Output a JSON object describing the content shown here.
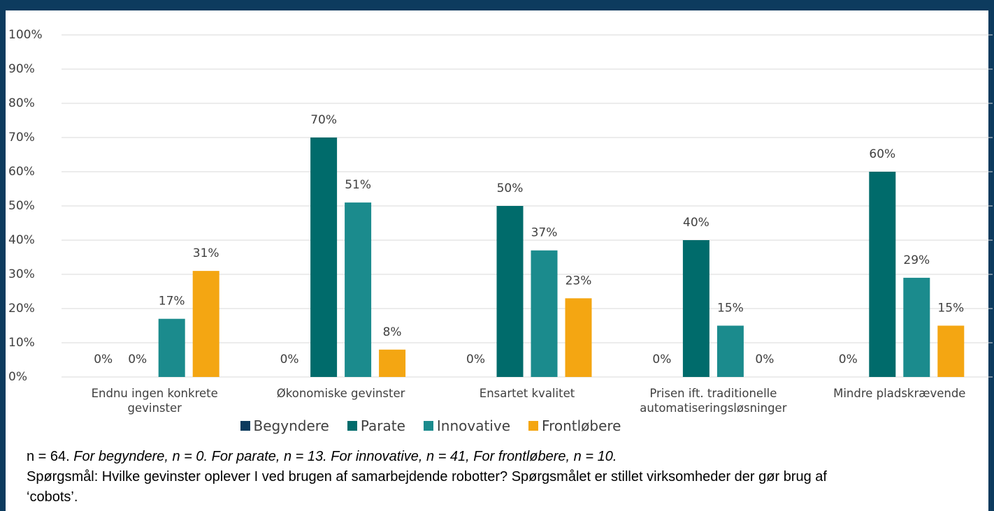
{
  "chart_data": {
    "type": "bar",
    "categories": [
      "Endnu ingen konkrete gevinster",
      "Økonomiske gevinster",
      "Ensartet kvalitet",
      "Prisen ift. traditionelle automatiseringsløsninger",
      "Mindre pladskrævende"
    ],
    "series": [
      {
        "name": "Begyndere",
        "color": "#0d3b5e",
        "values": [
          0,
          0,
          0,
          0,
          0
        ],
        "value_labels": [
          "0%",
          "0%",
          "0%",
          "0%",
          "0%"
        ]
      },
      {
        "name": "Parate",
        "color": "#006b6b",
        "values": [
          0,
          70,
          50,
          40,
          60
        ],
        "value_labels": [
          "0%",
          "70%",
          "50%",
          "40%",
          "60%"
        ]
      },
      {
        "name": "Innovative",
        "color": "#1b8b8d",
        "values": [
          17,
          51,
          37,
          15,
          29
        ],
        "value_labels": [
          "17%",
          "51%",
          "37%",
          "15%",
          "29%"
        ]
      },
      {
        "name": "Frontløbere",
        "color": "#f4a612",
        "values": [
          31,
          8,
          23,
          0,
          15
        ],
        "value_labels": [
          "31%",
          "8%",
          "23%",
          "0%",
          "15%"
        ]
      }
    ],
    "ylim": [
      0,
      100
    ],
    "yticks": [
      {
        "value": 0,
        "label": "0%"
      },
      {
        "value": 10,
        "label": "10%"
      },
      {
        "value": 20,
        "label": "20%"
      },
      {
        "value": 30,
        "label": "30%"
      },
      {
        "value": 40,
        "label": "40%"
      },
      {
        "value": 50,
        "label": "50%"
      },
      {
        "value": 60,
        "label": "60%"
      },
      {
        "value": 70,
        "label": "70%"
      },
      {
        "value": 80,
        "label": "80%"
      },
      {
        "value": 90,
        "label": "90%"
      },
      {
        "value": 100,
        "label": "100%"
      }
    ],
    "grid": true,
    "legend": "bottom",
    "note_n": "n = 64.",
    "note_groups": "For begyndere, n = 0. For parate, n = 13. For innovative, n = 41, For frontløbere, n = 10.",
    "question": "Spørgsmål: Hvilke gevinster oplever I ved brugen af samarbejdende robotter? Spørgsmålet er stillet virksomheder der gør brug af ‘cobots’."
  }
}
